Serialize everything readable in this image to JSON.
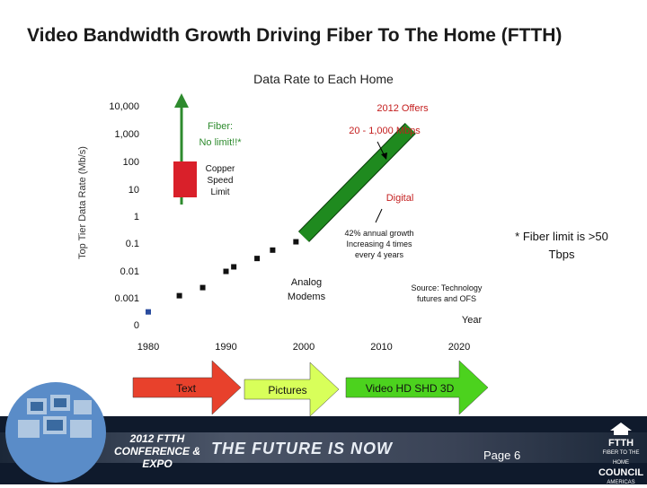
{
  "slide_title": "Video Bandwidth Growth Driving Fiber To The Home (FTTH)",
  "chart_data": {
    "type": "scatter",
    "title": "Data Rate to Each Home",
    "ylabel": "Top Tier Data Rate (Mb/s)",
    "xlabel": "Year",
    "x_ticks": [
      "1980",
      "1990",
      "2000",
      "2010",
      "2020"
    ],
    "y_ticks": [
      "0",
      "0.001",
      "0.01",
      "0.1",
      "1",
      "10",
      "100",
      "1,000",
      "10,000"
    ],
    "xlim": [
      1980,
      2020
    ],
    "y_log_scale": true,
    "series": [
      {
        "name": "Analog Modems",
        "points": [
          [
            1980,
            0.0003
          ],
          [
            1984,
            0.0012
          ],
          [
            1987,
            0.0024
          ],
          [
            1990,
            0.0096
          ],
          [
            1991,
            0.014
          ],
          [
            1994,
            0.028
          ],
          [
            1996,
            0.056
          ],
          [
            1999,
            0.112
          ]
        ]
      },
      {
        "name": "Digital",
        "line": [
          [
            2000,
            0.2
          ],
          [
            2012,
            1000
          ]
        ]
      }
    ],
    "annotations": {
      "fiber": "Fiber:\nNo limit!!*",
      "copper": "Copper\nSpeed\nLimit",
      "offers_title": "2012 Offers",
      "offers_range": "20 - 1,000 Mbps",
      "digital": "Digital",
      "growth": "42% annual growth\nIncreasing 4 times\nevery 4 years",
      "modems": "Analog\nModems",
      "source": "Source: Technology\nfutures and OFS",
      "fiber_limit": "* Fiber limit is >50\nTbps"
    },
    "eras": [
      "Text",
      "Pictures",
      "Video HD SHD 3D"
    ],
    "colors": {
      "fiber_arrow": "#2e8b2e",
      "copper_box": "#d9202a",
      "digital_bar": "#1f8a1f",
      "markers": "#111111",
      "text_arrow": "#e8412c",
      "pictures_arrow": "#d8ff5a",
      "video_arrow": "#4cd21e"
    }
  },
  "footer": {
    "expo": "2012 FTTH\nCONFERENCE & EXPO",
    "tagline": "THE FUTURE IS NOW",
    "page": "Page 6",
    "logo_main": "FTTH",
    "logo_sub": "FIBER TO THE HOME",
    "logo_council": "COUNCIL",
    "logo_region": "AMERICAS"
  }
}
